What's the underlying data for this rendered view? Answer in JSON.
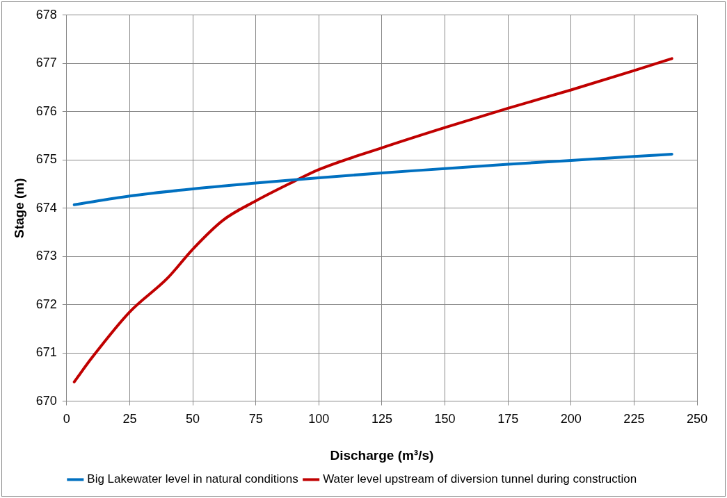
{
  "chart_data": {
    "type": "line",
    "xlabel": "Discharge (m³/s)",
    "ylabel": "Stage (m)",
    "xlim": [
      0,
      250
    ],
    "xticks": [
      0,
      25,
      50,
      75,
      100,
      125,
      150,
      175,
      200,
      225,
      250
    ],
    "ylim": [
      670,
      678
    ],
    "yticks": [
      670,
      671,
      672,
      673,
      674,
      675,
      676,
      677,
      678
    ],
    "grid": true,
    "legend": "bottom",
    "marker": "none",
    "line_style": "solid",
    "series": [
      {
        "name": "Big Lakewater level in natural conditions",
        "color": "#0070c0",
        "x": [
          3,
          25,
          50,
          75,
          100,
          125,
          150,
          175,
          200,
          225,
          240
        ],
        "values": [
          674.07,
          674.25,
          674.4,
          674.52,
          674.63,
          674.73,
          674.82,
          674.91,
          674.99,
          675.07,
          675.12
        ]
      },
      {
        "name": "Water level upstream of diversion tunnel during construction",
        "color": "#c00000",
        "x": [
          3,
          10,
          25,
          40,
          50,
          62,
          75,
          90,
          100,
          125,
          150,
          175,
          200,
          225,
          240
        ],
        "values": [
          670.4,
          670.9,
          671.85,
          672.55,
          673.15,
          673.75,
          674.15,
          674.55,
          674.8,
          675.25,
          675.67,
          676.07,
          676.45,
          676.85,
          677.1
        ]
      }
    ]
  }
}
